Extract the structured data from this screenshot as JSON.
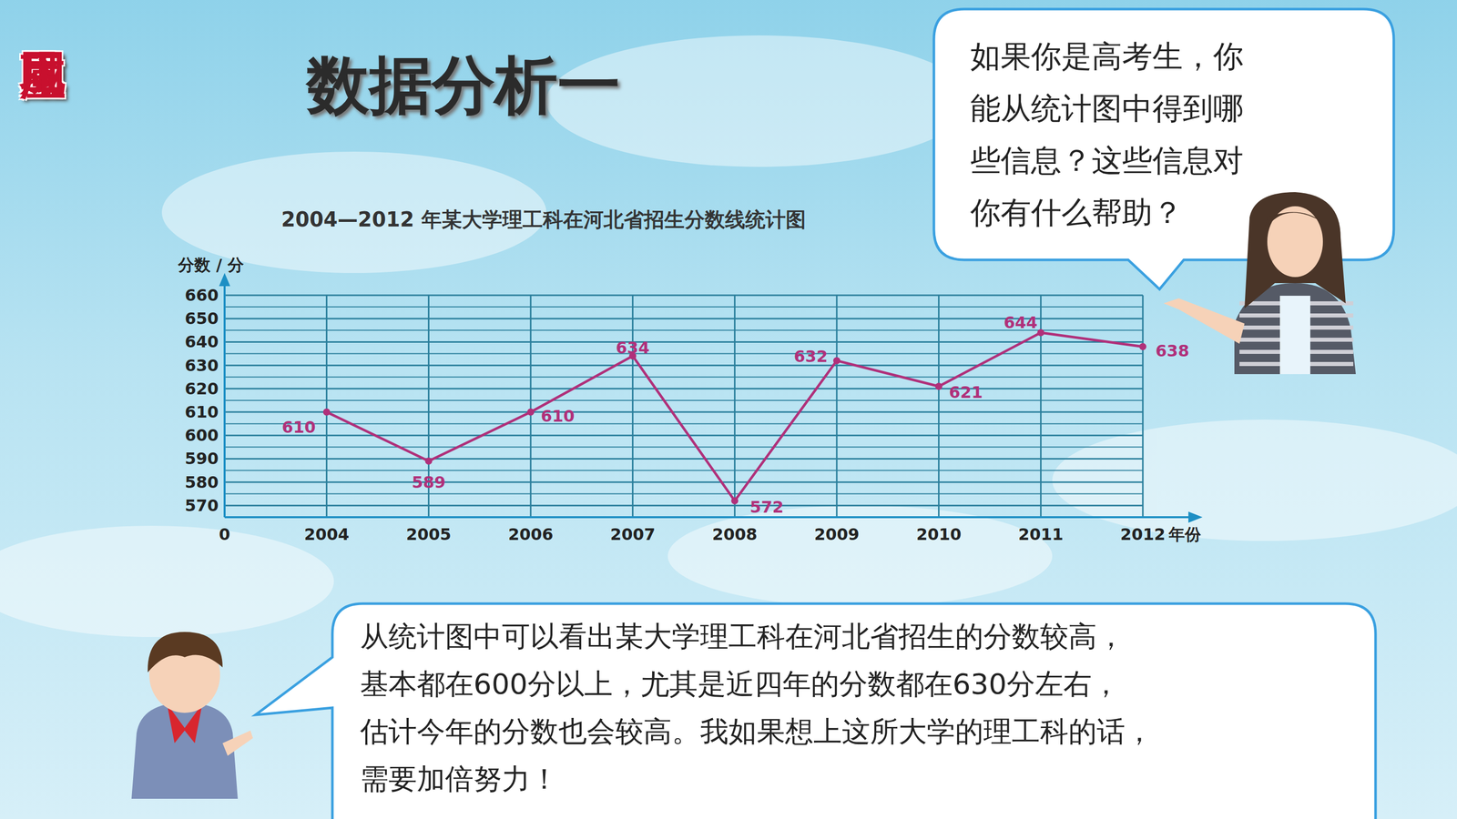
{
  "chart_data": {
    "type": "line",
    "title": "2004—2012 年某大学理工科在河北省招生分数线统计图",
    "y_label": "分数 / 分",
    "x_label": "年份",
    "origin_label": "0",
    "categories": [
      "2004",
      "2005",
      "2006",
      "2007",
      "2008",
      "2009",
      "2010",
      "2011",
      "2012"
    ],
    "values": [
      610,
      589,
      610,
      634,
      572,
      632,
      621,
      644,
      638
    ],
    "color": "#b0307a",
    "marker": "circle",
    "ylim": [
      565,
      660
    ],
    "yticks": [
      570,
      580,
      590,
      600,
      610,
      620,
      630,
      640,
      650,
      660
    ],
    "grid": true,
    "data_labels": true
  },
  "slide": {
    "section": "巩固应用",
    "heading": "数据分析一",
    "question": [
      "如果你是高考生，你",
      "能从统计图中得到哪",
      "些信息？这些信息对",
      "你有什么帮助？"
    ],
    "answer": [
      "从统计图中可以看出某大学理工科在河北省招生的分数较高，",
      "基本都在600分以上，尤其是近四年的分数都在630分左右，",
      "估计今年的分数也会较高。我如果想上这所大学的理工科的话，",
      "需要加倍努力！"
    ]
  }
}
